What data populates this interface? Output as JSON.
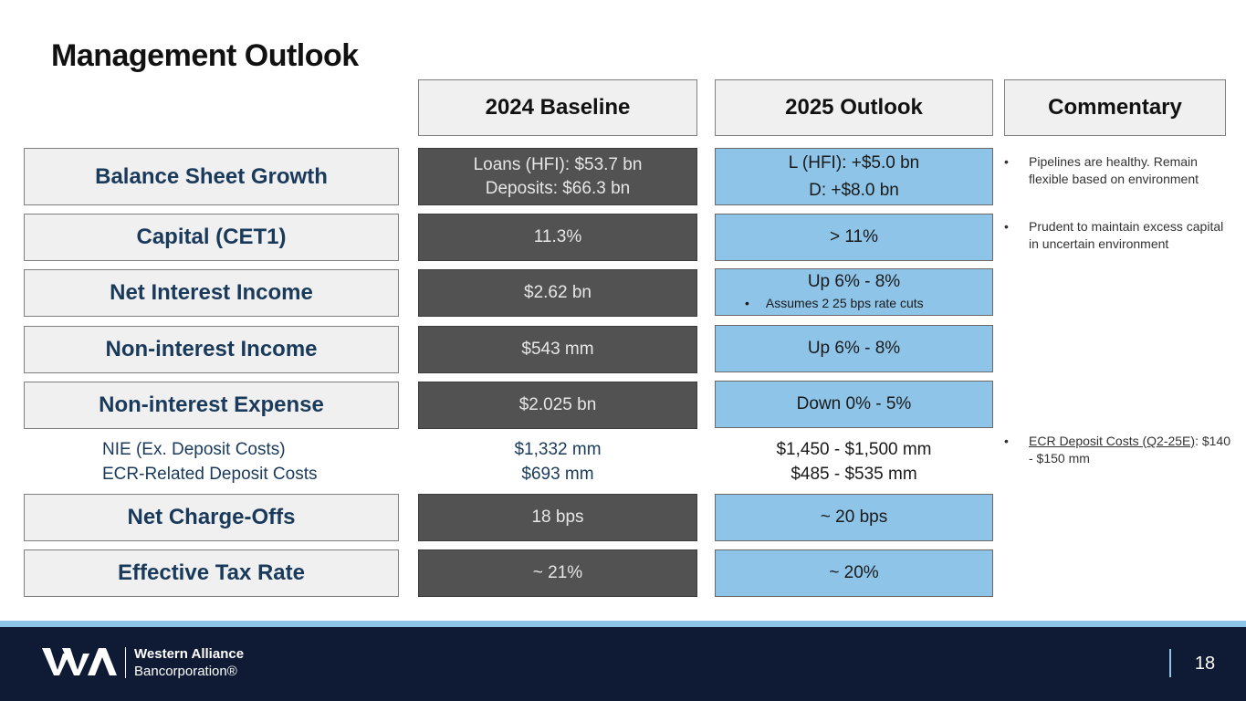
{
  "title": "Management Outlook",
  "headers": {
    "baseline": "2024 Baseline",
    "outlook": "2025 Outlook",
    "commentary": "Commentary"
  },
  "rows": {
    "balance": {
      "label": "Balance Sheet Growth",
      "base1": "Loans (HFI): $53.7 bn",
      "base2": "Deposits: $66.3 bn",
      "out1": "L (HFI): +$5.0 bn",
      "out2": "D: +$8.0 bn"
    },
    "capital": {
      "label": "Capital (CET1)",
      "base": "11.3%",
      "out": "> 11%"
    },
    "nii": {
      "label": "Net Interest Income",
      "base": "$2.62 bn",
      "out": "Up 6% - 8%",
      "note": "Assumes 2 25 bps rate cuts"
    },
    "nonint_income": {
      "label": "Non-interest Income",
      "base": "$543 mm",
      "out": "Up 6% - 8%"
    },
    "nonint_expense": {
      "label": "Non-interest Expense",
      "base": "$2.025 bn",
      "out": "Down 0% - 5%"
    },
    "nie_ex": {
      "label": "NIE (Ex. Deposit Costs)",
      "base": "$1,332 mm",
      "out": "$1,450 - $1,500 mm"
    },
    "ecr": {
      "label": "ECR-Related Deposit Costs",
      "base": "$693 mm",
      "out": "$485 - $535 mm"
    },
    "nco": {
      "label": "Net Charge-Offs",
      "base": "18 bps",
      "out": "~ 20 bps"
    },
    "tax": {
      "label": "Effective Tax Rate",
      "base": "~ 21%",
      "out": "~ 20%"
    }
  },
  "commentary": {
    "c1": "Pipelines are healthy. Remain flexible based on environment",
    "c2": "Prudent to maintain excess capital in uncertain environment",
    "c3_link": "ECR Deposit Costs (Q2-25E)",
    "c3_rest": ": $140 - $150 mm"
  },
  "bullet": "•",
  "footer": {
    "brand1": "Western Alliance",
    "brand2": "Bancorporation®",
    "page": "18"
  },
  "colors": {
    "navy": "#0f1b35",
    "light_blue": "#8ec4e8",
    "dark_gray": "#525252",
    "label_blue": "#1a3a5c"
  }
}
